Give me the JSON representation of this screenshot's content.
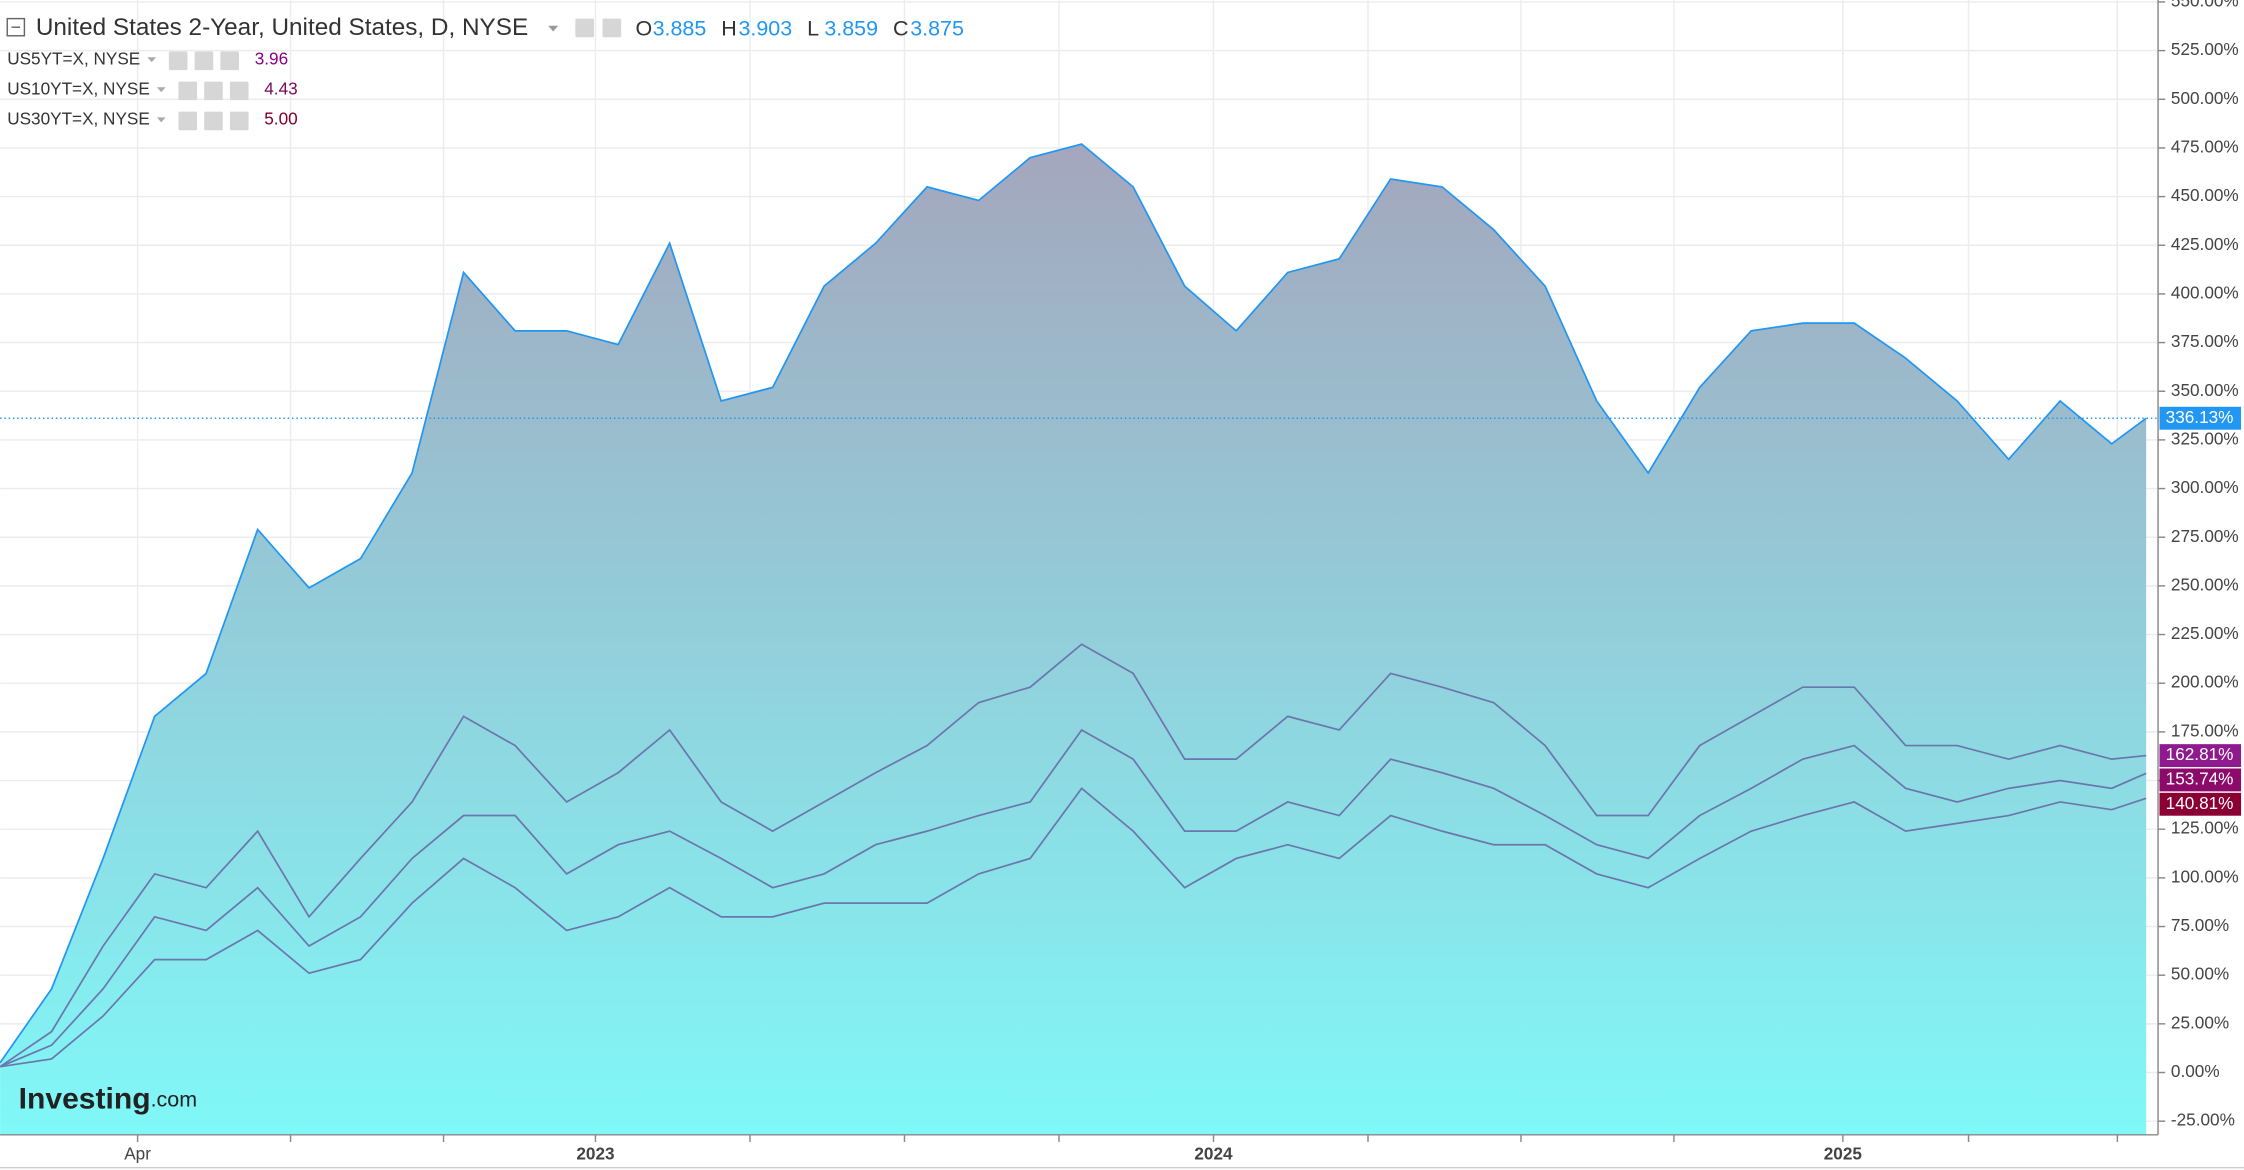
{
  "chart_data": {
    "type": "line",
    "title": "United States 2-Year, United States, D, NYSE",
    "ohlc": [
      {
        "key": "O",
        "value": 3.885
      },
      {
        "key": "H",
        "value": 3.903
      },
      {
        "key": "L",
        "value": 3.859
      },
      {
        "key": "C",
        "value": 3.875
      }
    ],
    "watermark": {
      "brand": "Investing",
      "suffix": ".com"
    },
    "x": [
      0,
      1,
      2,
      3,
      4,
      5,
      6,
      7,
      8,
      9,
      10,
      11,
      12,
      13,
      14,
      15,
      16,
      17,
      18,
      19,
      20,
      21,
      22,
      23,
      24,
      25,
      26,
      27,
      28,
      29,
      30,
      31,
      32,
      33,
      34,
      35,
      36,
      37,
      38,
      39,
      40,
      41,
      41.67
    ],
    "xlim": [
      0,
      41.9
    ],
    "xticks": [
      {
        "value": 2.67,
        "label": "Apr"
      },
      {
        "value": 5.64,
        "label": null
      },
      {
        "value": 8.61,
        "label": null
      },
      {
        "value": 11.56,
        "label": "2023"
      },
      {
        "value": 14.56,
        "label": null
      },
      {
        "value": 17.56,
        "label": null
      },
      {
        "value": 20.56,
        "label": null
      },
      {
        "value": 23.56,
        "label": "2024"
      },
      {
        "value": 26.56,
        "label": null
      },
      {
        "value": 29.53,
        "label": null
      },
      {
        "value": 32.5,
        "label": null
      },
      {
        "value": 35.78,
        "label": "2025"
      },
      {
        "value": 38.22,
        "label": null
      },
      {
        "value": 41.11,
        "label": null
      }
    ],
    "ylim": [
      -32,
      551
    ],
    "yticks": [
      {
        "value": -25,
        "label": "-25.00%"
      },
      {
        "value": 0,
        "label": "0.00%"
      },
      {
        "value": 25,
        "label": "25.00%"
      },
      {
        "value": 50,
        "label": "50.00%"
      },
      {
        "value": 75,
        "label": "75.00%"
      },
      {
        "value": 100,
        "label": "100.00%"
      },
      {
        "value": 125,
        "label": "125.00%"
      },
      {
        "value": 150,
        "label": "150.00%"
      },
      {
        "value": 175,
        "label": "175.00%"
      },
      {
        "value": 200,
        "label": "200.00%"
      },
      {
        "value": 225,
        "label": "225.00%"
      },
      {
        "value": 250,
        "label": "250.00%"
      },
      {
        "value": 275,
        "label": "275.00%"
      },
      {
        "value": 300,
        "label": "300.00%"
      },
      {
        "value": 325,
        "label": "325.00%"
      },
      {
        "value": 350,
        "label": "350.00%"
      },
      {
        "value": 375,
        "label": "375.00%"
      },
      {
        "value": 400,
        "label": "400.00%"
      },
      {
        "value": 425,
        "label": "425.00%"
      },
      {
        "value": 450,
        "label": "450.00%"
      },
      {
        "value": 475,
        "label": "475.00%"
      },
      {
        "value": 500,
        "label": "500.00%"
      },
      {
        "value": 525,
        "label": "525.00%"
      },
      {
        "value": 550,
        "label": "550.00%"
      }
    ],
    "grid": true,
    "series": [
      {
        "name": "United States 2-Year",
        "color": "#2196f3",
        "area": true,
        "label_color": "#2196f3",
        "values": [
          5,
          43,
          110,
          183,
          205,
          279,
          249,
          264,
          308,
          411,
          381,
          381,
          374,
          426,
          345,
          352,
          404,
          426,
          455,
          448,
          470,
          477,
          455,
          404,
          381,
          411,
          418,
          459,
          455,
          433,
          404,
          345,
          308,
          352,
          381,
          385,
          385,
          367,
          345,
          315,
          345,
          323,
          336.13
        ],
        "value_labels": [
          null,
          null,
          null,
          null,
          null,
          null,
          null,
          null,
          null,
          null,
          null,
          null,
          null,
          null,
          null,
          null,
          null,
          null,
          null,
          null,
          null,
          null,
          null,
          null,
          null,
          null,
          null,
          null,
          null,
          null,
          null,
          null,
          null,
          null,
          null,
          null,
          null,
          null,
          null,
          null,
          null,
          null,
          "336.13%"
        ]
      },
      {
        "name": "US5YT=X, NYSE",
        "quote": 3.96,
        "color": "#6b76ad",
        "label_color": "#8e1a8e",
        "quote_color": "#8b008b",
        "values": [
          3,
          21,
          65,
          102,
          95,
          124,
          80,
          110,
          139,
          183,
          168,
          139,
          154,
          176,
          139,
          124,
          139,
          154,
          168,
          190,
          198,
          220,
          205,
          161,
          161,
          183,
          176,
          205,
          198,
          190,
          168,
          132,
          132,
          168,
          183,
          198,
          198,
          168,
          168,
          161,
          168,
          161,
          162.81
        ],
        "value_labels": [
          null,
          null,
          null,
          null,
          null,
          null,
          null,
          null,
          null,
          null,
          null,
          null,
          null,
          null,
          null,
          null,
          null,
          null,
          null,
          null,
          null,
          null,
          null,
          null,
          null,
          null,
          null,
          null,
          null,
          null,
          null,
          null,
          null,
          null,
          null,
          null,
          null,
          null,
          null,
          null,
          null,
          null,
          "162.81%"
        ]
      },
      {
        "name": "US10YT=X, NYSE",
        "quote": 4.43,
        "color": "#6b76ad",
        "label_color": "#8b0a6a",
        "quote_color": "#7b0a5a",
        "values": [
          3,
          14,
          43,
          80,
          73,
          95,
          65,
          80,
          110,
          132,
          132,
          102,
          117,
          124,
          110,
          95,
          102,
          117,
          124,
          132,
          139,
          176,
          161,
          124,
          124,
          139,
          132,
          161,
          154,
          146,
          132,
          117,
          110,
          132,
          146,
          161,
          168,
          146,
          139,
          146,
          150,
          146,
          153.74
        ],
        "value_labels": [
          null,
          null,
          null,
          null,
          null,
          null,
          null,
          null,
          null,
          null,
          null,
          null,
          null,
          null,
          null,
          null,
          null,
          null,
          null,
          null,
          null,
          null,
          null,
          null,
          null,
          null,
          null,
          null,
          null,
          null,
          null,
          null,
          null,
          null,
          null,
          null,
          null,
          null,
          null,
          null,
          null,
          null,
          "153.74%"
        ]
      },
      {
        "name": "US30YT=X, NYSE",
        "quote": {
          "value": 5,
          "label": "5.00"
        },
        "color": "#6b76ad",
        "label_color": "#8b0033",
        "quote_color": "#80002a",
        "values": [
          3,
          7,
          29,
          58,
          58,
          73,
          51,
          58,
          87,
          110,
          95,
          73,
          80,
          95,
          80,
          80,
          87,
          87,
          87,
          102,
          110,
          146,
          124,
          95,
          110,
          117,
          110,
          132,
          124,
          117,
          117,
          102,
          95,
          110,
          124,
          132,
          139,
          124,
          128,
          132,
          139,
          135,
          140.81
        ],
        "value_labels": [
          null,
          null,
          null,
          null,
          null,
          null,
          null,
          null,
          null,
          null,
          null,
          null,
          null,
          null,
          null,
          null,
          null,
          null,
          null,
          null,
          null,
          null,
          null,
          null,
          null,
          null,
          null,
          null,
          null,
          null,
          null,
          null,
          null,
          null,
          null,
          null,
          null,
          null,
          null,
          null,
          null,
          null,
          "140.81%"
        ]
      }
    ]
  }
}
